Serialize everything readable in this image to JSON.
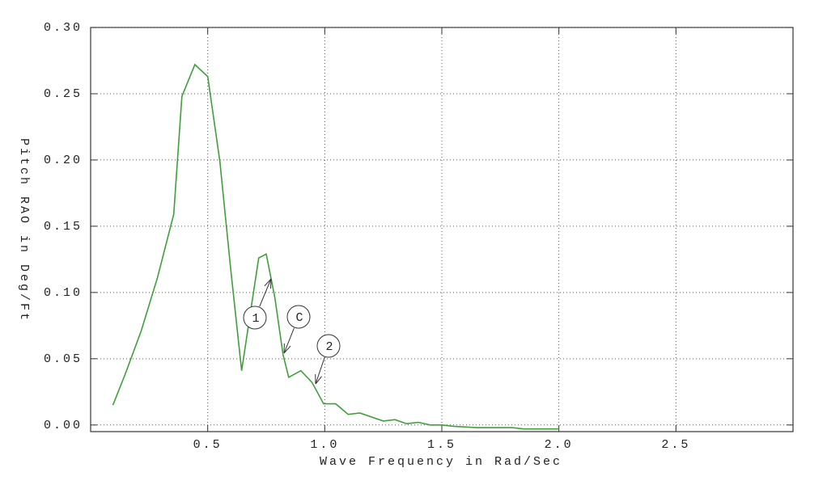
{
  "chart_data": {
    "type": "line",
    "xlabel": "Wave Frequency in Rad/Sec",
    "ylabel": "Pitch RAO in Deg/Ft",
    "xlim": [
      0,
      3
    ],
    "ylim": [
      -0.005,
      0.3
    ],
    "xticks": [
      0.5,
      {
        "value": 1,
        "label": "1.0"
      },
      1.5,
      {
        "value": 2,
        "label": "2.0"
      },
      2.5
    ],
    "yticks": [
      {
        "value": 0,
        "label": "0.00"
      },
      0.05,
      {
        "value": 0.1,
        "label": "0.10"
      },
      0.15,
      {
        "value": 0.2,
        "label": "0.20"
      },
      0.25,
      {
        "value": 0.3,
        "label": "0.30"
      }
    ],
    "grid": true,
    "series": [
      {
        "color": "#3f9f3a",
        "x": [
          0.095,
          0.147,
          0.216,
          0.285,
          0.355,
          0.39,
          0.445,
          0.5,
          0.552,
          0.597,
          0.645,
          0.718,
          0.75,
          0.787,
          0.822,
          0.846,
          0.898,
          0.946,
          0.995,
          1.047,
          1.1,
          1.15,
          1.25,
          1.3,
          1.35,
          1.4,
          1.45,
          1.5,
          1.55,
          1.65,
          1.8,
          1.85,
          2.0
        ],
        "values": [
          0.015,
          0.038,
          0.071,
          0.111,
          0.159,
          0.248,
          0.272,
          0.263,
          0.199,
          0.12,
          0.041,
          0.126,
          0.129,
          0.096,
          0.053,
          0.036,
          0.041,
          0.032,
          0.016,
          0.016,
          0.008,
          0.009,
          0.003,
          0.004,
          0.001,
          0.002,
          0,
          0,
          -0.001,
          -0.002,
          -0.002,
          -0.003,
          -0.003
        ]
      }
    ],
    "annotations": [
      "1",
      "C",
      "2"
    ]
  }
}
